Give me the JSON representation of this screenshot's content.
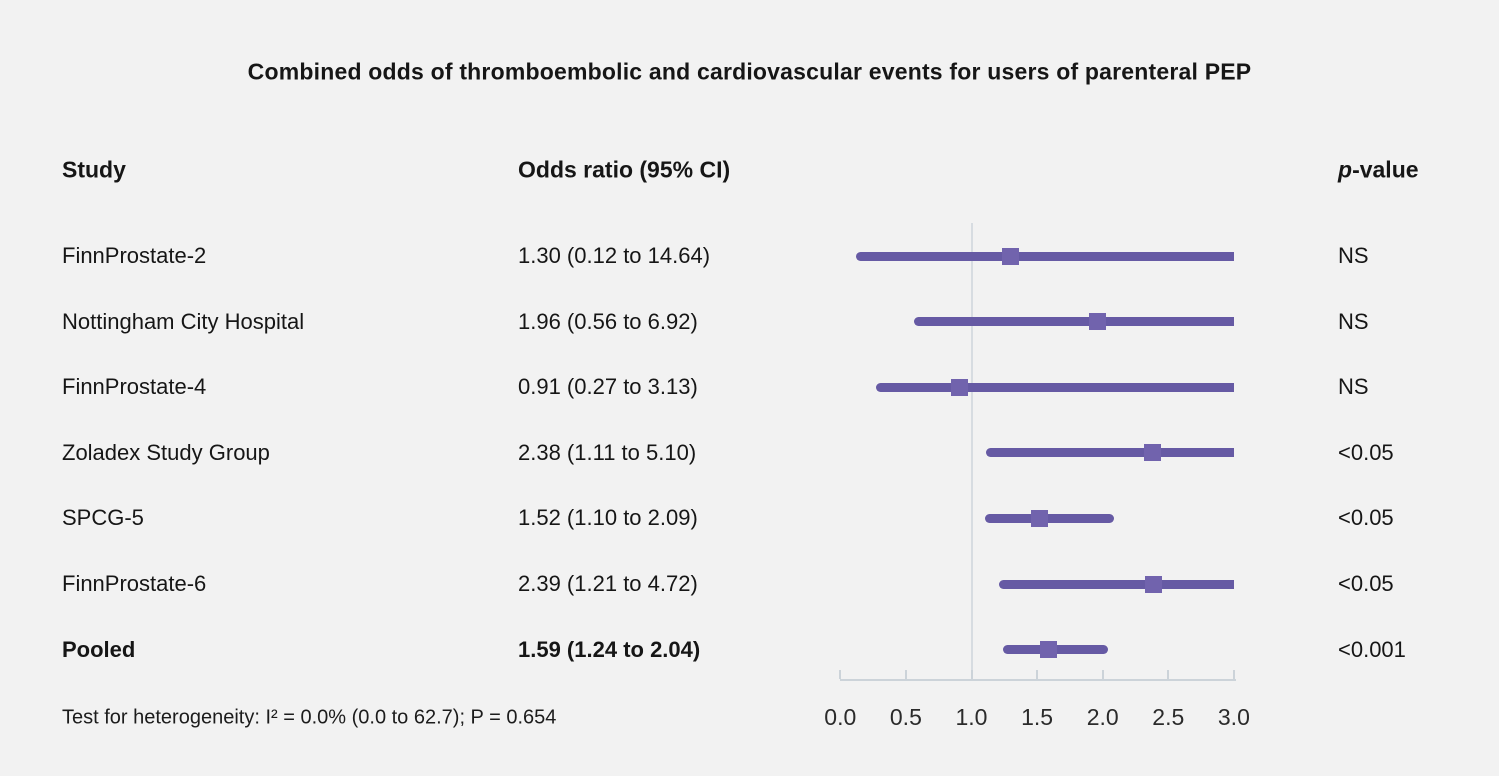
{
  "title": "Combined odds of thromboembolic and cardiovascular events for users of parenteral PEP",
  "columns": {
    "study": "Study",
    "odds_ratio": "Odds ratio (95% CI)",
    "p_italic": "p",
    "p_rest": "-value"
  },
  "footer": "Test for heterogeneity: I² = 0.0% (0.0 to 62.7); P = 0.654",
  "colors": {
    "background": "#f2f2f2",
    "ci_line": "#665aa4",
    "marker": "#7163ad",
    "reference_line": "#d7dce1",
    "axis": "#ccd3d9",
    "text": "#161616"
  },
  "chart_data": {
    "type": "scatter",
    "subtype": "forest-plot",
    "title": "Combined odds of thromboembolic and cardiovascular events for users of parenteral PEP",
    "xlabel": "",
    "ylabel": "",
    "xlim": [
      0.0,
      3.0
    ],
    "x_ticks": [
      0.0,
      0.5,
      1.0,
      1.5,
      2.0,
      2.5,
      3.0
    ],
    "x_tick_labels": [
      "0.0",
      "0.5",
      "1.0",
      "1.5",
      "2.0",
      "2.5",
      "3.0"
    ],
    "reference_line_x": 1.0,
    "grid": false,
    "studies": [
      {
        "study": "FinnProstate-2",
        "or": 1.3,
        "ci_low": 0.12,
        "ci_high": 14.64,
        "or_ci": "1.30 (0.12 to 14.64)",
        "p": "NS",
        "bold": false
      },
      {
        "study": "Nottingham City Hospital",
        "or": 1.96,
        "ci_low": 0.56,
        "ci_high": 6.92,
        "or_ci": "1.96 (0.56 to 6.92)",
        "p": "NS",
        "bold": false
      },
      {
        "study": "FinnProstate-4",
        "or": 0.91,
        "ci_low": 0.27,
        "ci_high": 3.13,
        "or_ci": "0.91 (0.27 to 3.13)",
        "p": "NS",
        "bold": false
      },
      {
        "study": "Zoladex Study Group",
        "or": 2.38,
        "ci_low": 1.11,
        "ci_high": 5.1,
        "or_ci": "2.38 (1.11 to 5.10)",
        "p": "<0.05",
        "bold": false
      },
      {
        "study": "SPCG-5",
        "or": 1.52,
        "ci_low": 1.1,
        "ci_high": 2.09,
        "or_ci": "1.52 (1.10 to 2.09)",
        "p": "<0.05",
        "bold": false
      },
      {
        "study": "FinnProstate-6",
        "or": 2.39,
        "ci_low": 1.21,
        "ci_high": 4.72,
        "or_ci": "2.39 (1.21 to 4.72)",
        "p": "<0.05",
        "bold": false
      },
      {
        "study": "Pooled",
        "or": 1.59,
        "ci_low": 1.24,
        "ci_high": 2.04,
        "or_ci": "1.59 (1.24 to 2.04)",
        "p": "<0.001",
        "bold": true
      }
    ]
  }
}
